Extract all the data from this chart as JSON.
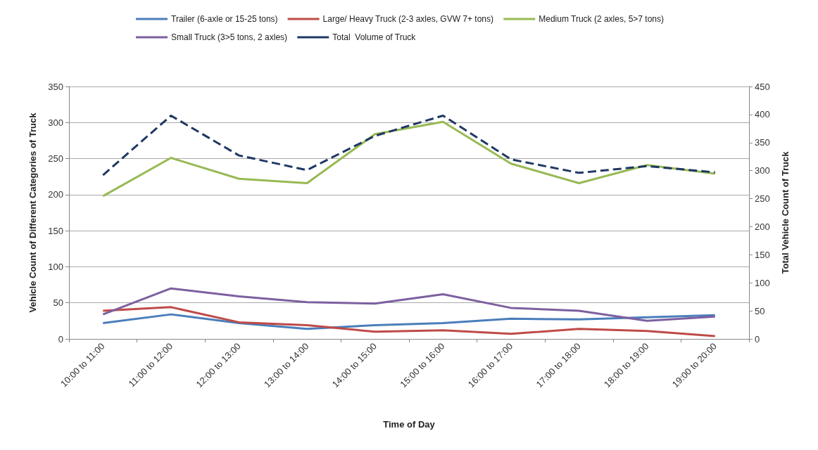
{
  "chart_data": {
    "type": "line",
    "xlabel": "Time of Day",
    "ylabel": "Vehicle Count of Different Categories of Truck",
    "y2label": "Total Vehicle Count of Truck",
    "categories": [
      "10:00 to 11:00",
      "11:00 to 12:00",
      "12:00 to 13:00",
      "13:00 to 14:00",
      "14:00 to 15:00",
      "15:00 to 16:00",
      "16:00 to 17:00",
      "17:00 to 18:00",
      "18:00 to 19:00",
      "19:00 to 20:00"
    ],
    "series": [
      {
        "name": "Trailer (6-axle or 15-25 tons)",
        "color": "#4a7ebb",
        "values": [
          22,
          34,
          22,
          14,
          19,
          22,
          28,
          27,
          30,
          33
        ]
      },
      {
        "name": "Large/ Heavy Truck (2-3 axles, GVW 7+ tons)",
        "color": "#be4b48",
        "values": [
          39,
          44,
          23,
          19,
          10,
          12,
          7,
          14,
          11,
          4
        ]
      },
      {
        "name": "Medium Truck (2 axles, 5>7 tons)",
        "color": "#98b954",
        "values": [
          198,
          251,
          222,
          216,
          284,
          301,
          243,
          216,
          241,
          229
        ]
      },
      {
        "name": "Small Truck (3>5 tons, 2 axles)",
        "color": "#7d60a0",
        "values": [
          34,
          70,
          59,
          51,
          49,
          62,
          43,
          39,
          25,
          31
        ]
      },
      {
        "name": "Total  Volume of Truck",
        "color": "#1f3864",
        "axis": "y2",
        "line_style": "dashed",
        "values": [
          292,
          398,
          327,
          301,
          362,
          398,
          320,
          296,
          308,
          297
        ]
      }
    ],
    "ylim": [
      0,
      350
    ],
    "yticks": [
      0,
      50,
      100,
      150,
      200,
      250,
      300,
      350
    ],
    "y2lim": [
      0,
      450
    ],
    "y2ticks": [
      0,
      50,
      100,
      150,
      200,
      250,
      300,
      350,
      400,
      450
    ],
    "grid": "y",
    "legend": "top",
    "marker": "none"
  }
}
